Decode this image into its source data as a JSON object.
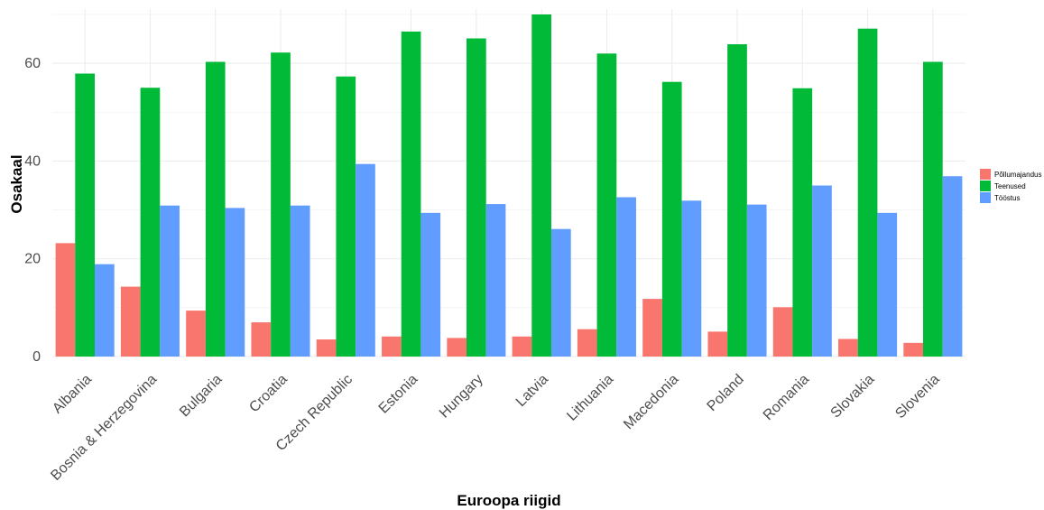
{
  "chart_data": {
    "type": "bar",
    "title": "",
    "xlabel": "Euroopa riigid",
    "ylabel": "Osakaal",
    "ylim": [
      0,
      70
    ],
    "yticks": [
      0,
      20,
      40,
      60
    ],
    "grid": true,
    "legend_position": "right",
    "categories": [
      "Albania",
      "Bosnia & Herzegovina",
      "Bulgaria",
      "Croatia",
      "Czech Republic",
      "Estonia",
      "Hungary",
      "Latvia",
      "Lithuania",
      "Macedonia",
      "Poland",
      "Romania",
      "Slovakia",
      "Slovenia"
    ],
    "series": [
      {
        "name": "Põllumajandus",
        "color": "#F8766D",
        "values": [
          23.2,
          14.3,
          9.4,
          7.0,
          3.5,
          4.1,
          3.8,
          4.1,
          5.6,
          11.8,
          5.1,
          10.1,
          3.6,
          2.8
        ]
      },
      {
        "name": "Teenused",
        "color": "#00BA38",
        "values": [
          57.9,
          55.0,
          60.3,
          62.2,
          57.3,
          66.5,
          65.1,
          70.0,
          62.0,
          56.2,
          63.9,
          54.9,
          67.1,
          60.3
        ]
      },
      {
        "name": "Tööstus",
        "color": "#619CFF",
        "values": [
          18.9,
          30.9,
          30.4,
          30.9,
          39.4,
          29.4,
          31.2,
          26.1,
          32.6,
          31.9,
          31.1,
          35.0,
          29.4,
          36.9
        ]
      }
    ]
  }
}
